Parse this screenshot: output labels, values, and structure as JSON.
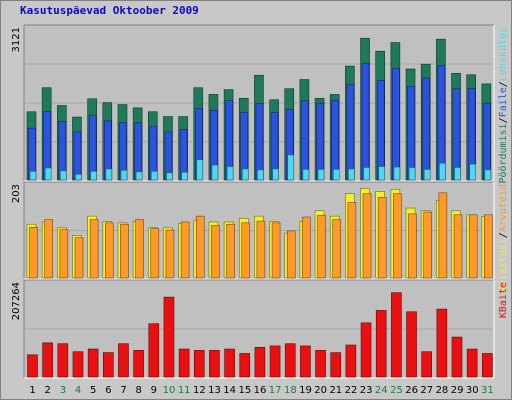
{
  "title": "Kasutuspäevad Oktoober 2009",
  "colors": {
    "background": "#c8c8c8",
    "plot_background": "#c0c0c0",
    "grid": "#a8a8a8",
    "visits": "#1e7a5a",
    "pages": "#2b52e0",
    "hits_files": "#4fd8f0",
    "hits": "#f0f030",
    "files": "#ff9a28",
    "kbytes": "#e81010",
    "weekend_label": "#1f7a3a",
    "weekday_label": "#000000"
  },
  "chart_data": [
    {
      "type": "bar",
      "panel": "top",
      "ymax_label": "3121",
      "ylim": [
        0,
        3121
      ],
      "grid": true,
      "categories": [
        "1",
        "2",
        "3",
        "4",
        "5",
        "6",
        "7",
        "8",
        "9",
        "10",
        "11",
        "12",
        "13",
        "14",
        "15",
        "16",
        "17",
        "18",
        "19",
        "20",
        "21",
        "22",
        "23",
        "24",
        "25",
        "26",
        "27",
        "28",
        "29",
        "30",
        "31"
      ],
      "weekend_days": [
        "3",
        "4",
        "10",
        "11",
        "17",
        "18",
        "24",
        "25",
        "31"
      ],
      "legend_labels": [
        "Pöördumisi",
        "Faile",
        "Lehekülgi"
      ],
      "legend_separator": "/",
      "series": [
        {
          "name": "Pöördumisi",
          "values": [
            1420,
            1920,
            1550,
            1310,
            1690,
            1610,
            1570,
            1500,
            1420,
            1320,
            1320,
            1920,
            1780,
            1880,
            1700,
            2180,
            1670,
            1900,
            2090,
            1700,
            1780,
            2370,
            2950,
            2680,
            2860,
            2310,
            2410,
            2930,
            2220,
            2190,
            2000
          ]
        },
        {
          "name": "Faile",
          "values": [
            1080,
            1430,
            1220,
            1000,
            1350,
            1230,
            1190,
            1190,
            1120,
            1000,
            1050,
            1490,
            1450,
            1650,
            1410,
            1590,
            1410,
            1470,
            1650,
            1600,
            1660,
            1990,
            2430,
            2070,
            2320,
            1950,
            2120,
            2380,
            1900,
            1900,
            1600
          ]
        },
        {
          "name": "Lehekülgi",
          "values": [
            180,
            250,
            190,
            120,
            180,
            230,
            200,
            170,
            180,
            150,
            160,
            420,
            310,
            280,
            230,
            210,
            230,
            520,
            220,
            220,
            220,
            230,
            260,
            280,
            270,
            260,
            220,
            350,
            260,
            330,
            210
          ]
        }
      ]
    },
    {
      "type": "bar",
      "panel": "middle",
      "ymax_label": "203",
      "ylim": [
        0,
        203
      ],
      "grid": true,
      "categories": [
        "1",
        "2",
        "3",
        "4",
        "5",
        "6",
        "7",
        "8",
        "9",
        "10",
        "11",
        "12",
        "13",
        "14",
        "15",
        "16",
        "17",
        "18",
        "19",
        "20",
        "21",
        "22",
        "23",
        "24",
        "25",
        "26",
        "27",
        "28",
        "29",
        "30",
        "31"
      ],
      "legend_labels": [
        "Külastusi",
        "Arvuteid"
      ],
      "legend_separator": "/",
      "series": [
        {
          "name": "Külastusi",
          "values": [
            120,
            125,
            112,
            95,
            138,
            126,
            123,
            126,
            112,
            112,
            122,
            128,
            125,
            125,
            133,
            138,
            126,
            100,
            126,
            150,
            138,
            188,
            200,
            193,
            198,
            156,
            150,
            173,
            150,
            141,
            137
          ]
        },
        {
          "name": "Arvuteid",
          "values": [
            113,
            130,
            108,
            90,
            130,
            123,
            120,
            130,
            110,
            107,
            125,
            138,
            117,
            120,
            123,
            127,
            123,
            105,
            136,
            140,
            130,
            168,
            188,
            180,
            188,
            143,
            147,
            190,
            141,
            141,
            141
          ]
        }
      ]
    },
    {
      "type": "bar",
      "panel": "bottom",
      "ymax_label": "207264",
      "ylim": [
        0,
        207264
      ],
      "grid": true,
      "categories": [
        "1",
        "2",
        "3",
        "4",
        "5",
        "6",
        "7",
        "8",
        "9",
        "10",
        "11",
        "12",
        "13",
        "14",
        "15",
        "16",
        "17",
        "18",
        "19",
        "20",
        "21",
        "22",
        "23",
        "24",
        "25",
        "26",
        "27",
        "28",
        "29",
        "30",
        "31"
      ],
      "legend_labels": [
        "KBaite"
      ],
      "series": [
        {
          "name": "KBaite",
          "values": [
            50000,
            77000,
            75000,
            57000,
            63000,
            55000,
            75000,
            60000,
            120000,
            180000,
            63000,
            60000,
            60000,
            63000,
            53000,
            67000,
            70000,
            75000,
            70000,
            60000,
            55000,
            72000,
            122000,
            150000,
            190000,
            147000,
            57000,
            153000,
            90000,
            63000,
            53000
          ]
        }
      ]
    }
  ]
}
